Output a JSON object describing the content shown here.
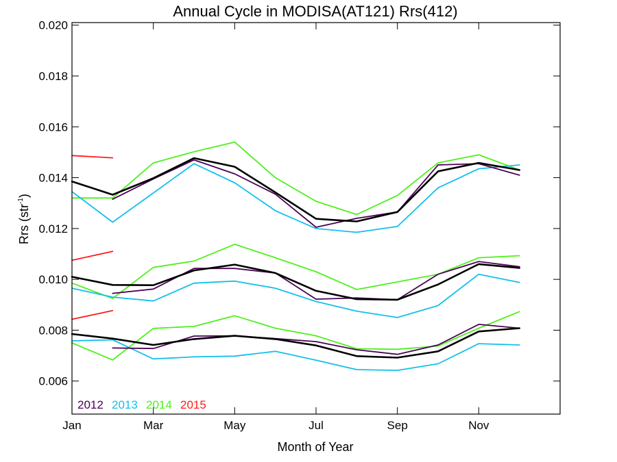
{
  "chart_data": {
    "type": "line",
    "title": "Annual Cycle in MODISA(AT121) Rrs(412)",
    "xlabel": "Month of Year",
    "ylabel": "Rrs (str",
    "ylabel_sup": "-1",
    "ylabel_close": ")",
    "xlim": [
      1,
      13
    ],
    "ylim": [
      0.0047,
      0.0201
    ],
    "x_ticks": [
      {
        "value": 1,
        "label": "Jan"
      },
      {
        "value": 3,
        "label": "Mar"
      },
      {
        "value": 5,
        "label": "May"
      },
      {
        "value": 7,
        "label": "Jul"
      },
      {
        "value": 9,
        "label": "Sep"
      },
      {
        "value": 11,
        "label": "Nov"
      }
    ],
    "y_ticks": [
      {
        "value": 0.006,
        "label": "0.006"
      },
      {
        "value": 0.008,
        "label": "0.008"
      },
      {
        "value": 0.01,
        "label": "0.010"
      },
      {
        "value": 0.012,
        "label": "0.012"
      },
      {
        "value": 0.014,
        "label": "0.014"
      },
      {
        "value": 0.016,
        "label": "0.016"
      },
      {
        "value": 0.018,
        "label": "0.018"
      },
      {
        "value": 0.02,
        "label": "0.020"
      }
    ],
    "legend_position": "bottom-left",
    "legend": [
      {
        "label": "2012",
        "color": "#4b0055"
      },
      {
        "label": "2013",
        "color": "#12bfeb"
      },
      {
        "label": "2014",
        "color": "#4cf01c"
      },
      {
        "label": "2015",
        "color": "#ff1a1a"
      }
    ],
    "series": [
      {
        "group": "upper",
        "color": "#4cf01c",
        "x": [
          1,
          2,
          3,
          4,
          5,
          6,
          7,
          8,
          9,
          10,
          11,
          12
        ],
        "values": [
          0.0132,
          0.0132,
          0.01458,
          0.01502,
          0.0154,
          0.014,
          0.01307,
          0.01255,
          0.0133,
          0.01458,
          0.0149,
          0.0143
        ]
      },
      {
        "group": "upper",
        "color": "#12bfeb",
        "x": [
          1,
          2,
          3,
          4,
          5,
          6,
          7,
          8,
          9,
          10,
          11,
          12
        ],
        "values": [
          0.01345,
          0.01225,
          0.0134,
          0.01455,
          0.0138,
          0.0127,
          0.012,
          0.01185,
          0.01208,
          0.0136,
          0.01435,
          0.0145
        ]
      },
      {
        "group": "upper",
        "color": "#4b0055",
        "x": [
          2,
          3,
          4,
          5,
          6,
          7,
          8,
          9,
          10,
          11,
          12
        ],
        "values": [
          0.01315,
          0.01395,
          0.0147,
          0.01415,
          0.01335,
          0.01205,
          0.0124,
          0.01265,
          0.0145,
          0.01455,
          0.0141
        ]
      },
      {
        "group": "upper",
        "color": "#ff1a1a",
        "x": [
          1,
          2
        ],
        "values": [
          0.01487,
          0.01478
        ]
      },
      {
        "group": "upper",
        "color": "#000000",
        "width": 2.6,
        "x": [
          1,
          2,
          3,
          4,
          5,
          6,
          7,
          8,
          9,
          10,
          11,
          12
        ],
        "values": [
          0.01385,
          0.01333,
          0.01398,
          0.01477,
          0.01443,
          0.01342,
          0.01238,
          0.01228,
          0.01265,
          0.01425,
          0.01458,
          0.0143
        ]
      },
      {
        "group": "middle",
        "color": "#4cf01c",
        "x": [
          1,
          2,
          3,
          4,
          5,
          6,
          7,
          8,
          9,
          10,
          11,
          12
        ],
        "values": [
          0.00985,
          0.00925,
          0.01047,
          0.01072,
          0.01138,
          0.01085,
          0.0103,
          0.0096,
          0.0099,
          0.0102,
          0.01085,
          0.01093
        ]
      },
      {
        "group": "middle",
        "color": "#12bfeb",
        "x": [
          1,
          2,
          3,
          4,
          5,
          6,
          7,
          8,
          9,
          10,
          11,
          12
        ],
        "values": [
          0.00965,
          0.0093,
          0.00915,
          0.00985,
          0.00993,
          0.00965,
          0.00913,
          0.00875,
          0.0085,
          0.00897,
          0.0102,
          0.00988
        ]
      },
      {
        "group": "middle",
        "color": "#4b0055",
        "x": [
          2,
          3,
          4,
          5,
          6,
          7,
          8,
          9,
          10,
          11,
          12
        ],
        "values": [
          0.00945,
          0.00962,
          0.01043,
          0.01043,
          0.01025,
          0.00922,
          0.00927,
          0.0092,
          0.0102,
          0.0107,
          0.0105
        ]
      },
      {
        "group": "middle",
        "color": "#ff1a1a",
        "x": [
          1,
          2
        ],
        "values": [
          0.01075,
          0.0111
        ]
      },
      {
        "group": "middle",
        "color": "#000000",
        "width": 2.6,
        "x": [
          1,
          2,
          3,
          4,
          5,
          6,
          7,
          8,
          9,
          10,
          11,
          12
        ],
        "values": [
          0.0101,
          0.00978,
          0.00977,
          0.01035,
          0.01058,
          0.01025,
          0.00955,
          0.00922,
          0.0092,
          0.0098,
          0.0106,
          0.01045
        ]
      },
      {
        "group": "lower",
        "color": "#4cf01c",
        "x": [
          1,
          2,
          3,
          4,
          5,
          6,
          7,
          8,
          9,
          10,
          11,
          12
        ],
        "values": [
          0.0075,
          0.00683,
          0.00807,
          0.00815,
          0.00857,
          0.00808,
          0.00778,
          0.00727,
          0.00725,
          0.00738,
          0.00808,
          0.00873
        ]
      },
      {
        "group": "lower",
        "color": "#12bfeb",
        "x": [
          1,
          2,
          3,
          4,
          5,
          6,
          7,
          8,
          9,
          10,
          11,
          12
        ],
        "values": [
          0.00758,
          0.00762,
          0.00687,
          0.00695,
          0.00698,
          0.00717,
          0.00682,
          0.00645,
          0.00642,
          0.00668,
          0.00747,
          0.00742
        ]
      },
      {
        "group": "lower",
        "color": "#4b0055",
        "x": [
          2,
          3,
          4,
          5,
          6,
          7,
          8,
          9,
          10,
          11,
          12
        ],
        "values": [
          0.0073,
          0.00728,
          0.00777,
          0.00778,
          0.00767,
          0.00755,
          0.00723,
          0.00705,
          0.00742,
          0.00823,
          0.00808
        ]
      },
      {
        "group": "lower",
        "color": "#ff1a1a",
        "x": [
          1,
          2
        ],
        "values": [
          0.00843,
          0.00877
        ]
      },
      {
        "group": "lower",
        "color": "#000000",
        "width": 2.6,
        "x": [
          1,
          2,
          3,
          4,
          5,
          6,
          7,
          8,
          9,
          10,
          11,
          12
        ],
        "values": [
          0.00785,
          0.00767,
          0.00742,
          0.00765,
          0.00778,
          0.00765,
          0.0074,
          0.00698,
          0.00692,
          0.00717,
          0.00795,
          0.00808
        ]
      }
    ]
  }
}
